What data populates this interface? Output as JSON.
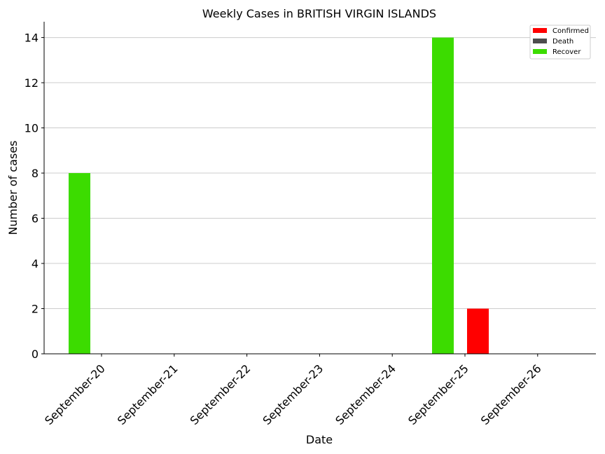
{
  "chart_data": {
    "type": "bar",
    "title": "Weekly Cases in BRITISH VIRGIN ISLANDS",
    "xlabel": "Date",
    "ylabel": "Number of cases",
    "categories": [
      "September-20",
      "September-21",
      "September-22",
      "September-23",
      "September-24",
      "September-25",
      "September-26"
    ],
    "series": [
      {
        "name": "Confirmed",
        "color": "#ff0000",
        "values": [
          0,
          0,
          0,
          0,
          0,
          2,
          0
        ]
      },
      {
        "name": "Death",
        "color": "#4d4d4d",
        "values": [
          0,
          0,
          0,
          0,
          0,
          0,
          0
        ]
      },
      {
        "name": "Recover",
        "color": "#3cdc00",
        "values": [
          8,
          0,
          0,
          0,
          0,
          14,
          0
        ]
      }
    ],
    "ylim": [
      0,
      14.7
    ],
    "yticks": [
      0,
      2,
      4,
      6,
      8,
      10,
      12,
      14
    ],
    "grid": "horizontal",
    "legend": "top-right"
  }
}
